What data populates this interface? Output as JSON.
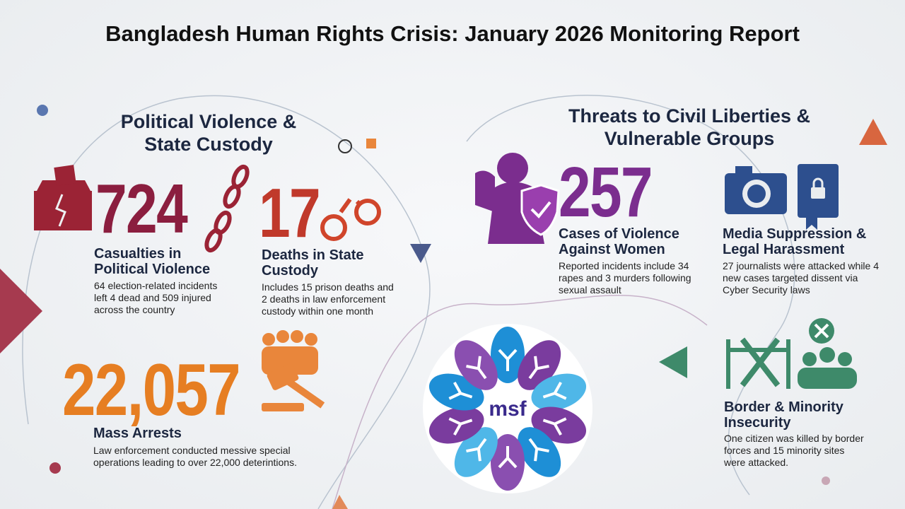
{
  "header": {
    "title": "Bangladesh Human Rights Crisis: January 2026 Monitoring Report"
  },
  "left_section": {
    "title": "Political Violence & State Custody",
    "stats": [
      {
        "number": "724",
        "label": "Casualties in Political Violence",
        "description": "64 election-related incidents left 4 dead and 509 injured across the country"
      },
      {
        "number": "17",
        "label": "Deaths in State Custody",
        "description": "Includes 15 prison deaths and 2 deaths in law enforcement custody within one month"
      },
      {
        "number": "22,057",
        "label": "Mass Arrests",
        "description": "Law enforcement conducted messive special operations leading to over 22,000 deterintions."
      }
    ]
  },
  "right_section": {
    "title": "Threats to Civil Liberties & Vulnerable Groups",
    "stats": [
      {
        "number": "257",
        "label": "Cases of Violence Against Women",
        "description": "Reported incidents include 34 rapes and 3 murders following sexual assault"
      },
      {
        "label": "Media Suppression & Legal Harassment",
        "description": "27 journalists were attacked while 4 new cases targeted dissent via Cyber Security laws"
      },
      {
        "label": "Border & Minority Insecurity",
        "description": "One citizen was killed by border forces and 15 minority sites were attacked."
      }
    ]
  },
  "logo": {
    "text": "msf"
  }
}
